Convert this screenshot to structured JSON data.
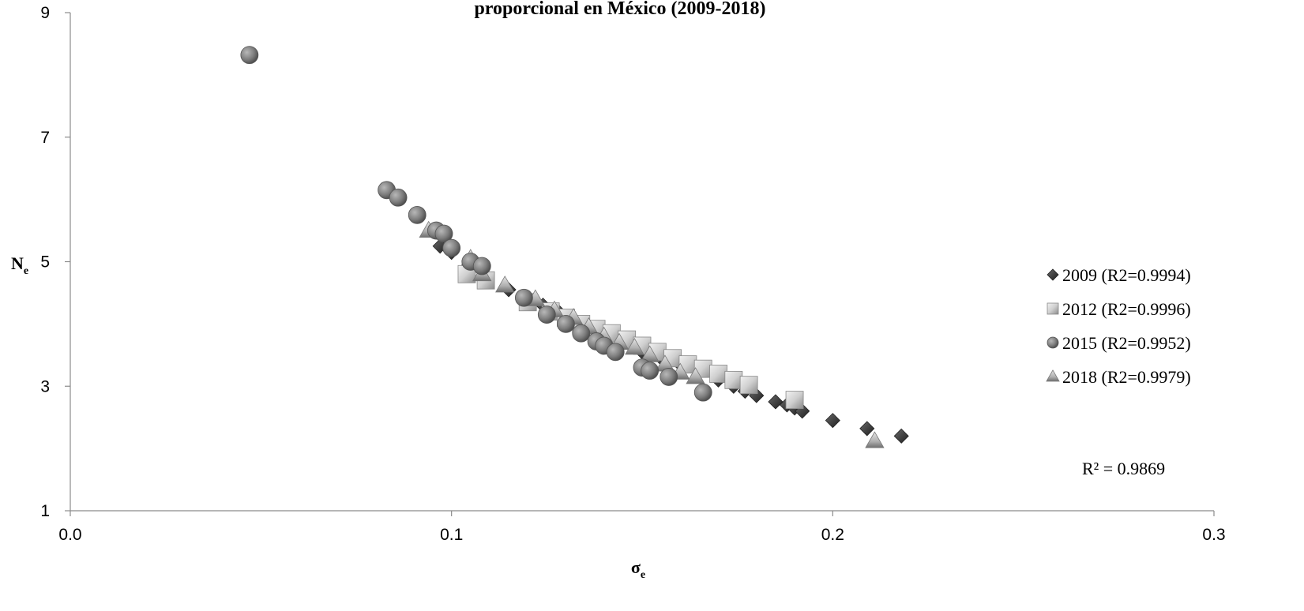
{
  "chart_data": {
    "type": "scatter",
    "title": "proporcional en México (2009-2018)",
    "xlabel": "σ",
    "xlabel_sub": "e",
    "ylabel": "N",
    "ylabel_sub": "e",
    "xlim": [
      0.0,
      0.3
    ],
    "ylim": [
      1,
      9
    ],
    "x_ticks": [
      0.0,
      0.1,
      0.2,
      0.3
    ],
    "x_tick_labels": [
      "0.0",
      "0.1",
      "0.2",
      "0.3"
    ],
    "y_ticks": [
      1,
      3,
      5,
      7,
      9
    ],
    "y_tick_labels": [
      "1",
      "3",
      "5",
      "7",
      "9"
    ],
    "grid": false,
    "legend_position": "right",
    "annotation": "R² = 0.9869",
    "series": [
      {
        "name": "2009 (R2=0.9994)",
        "marker": "diamond",
        "color": "#3a3a3a",
        "points": [
          [
            0.097,
            5.25
          ],
          [
            0.1,
            5.15
          ],
          [
            0.105,
            4.95
          ],
          [
            0.115,
            4.55
          ],
          [
            0.12,
            4.4
          ],
          [
            0.124,
            4.3
          ],
          [
            0.128,
            4.2
          ],
          [
            0.132,
            4.05
          ],
          [
            0.136,
            3.95
          ],
          [
            0.14,
            3.85
          ],
          [
            0.145,
            3.7
          ],
          [
            0.15,
            3.55
          ],
          [
            0.155,
            3.45
          ],
          [
            0.16,
            3.35
          ],
          [
            0.165,
            3.25
          ],
          [
            0.17,
            3.1
          ],
          [
            0.174,
            3.0
          ],
          [
            0.177,
            2.92
          ],
          [
            0.18,
            2.85
          ],
          [
            0.185,
            2.75
          ],
          [
            0.188,
            2.7
          ],
          [
            0.19,
            2.65
          ],
          [
            0.192,
            2.6
          ],
          [
            0.2,
            2.45
          ],
          [
            0.209,
            2.32
          ],
          [
            0.218,
            2.2
          ]
        ]
      },
      {
        "name": "2012 (R2=0.9996)",
        "marker": "square",
        "color": "#cfcfcf",
        "points": [
          [
            0.104,
            4.8
          ],
          [
            0.109,
            4.7
          ],
          [
            0.12,
            4.35
          ],
          [
            0.126,
            4.2
          ],
          [
            0.13,
            4.1
          ],
          [
            0.134,
            4.0
          ],
          [
            0.138,
            3.92
          ],
          [
            0.142,
            3.85
          ],
          [
            0.146,
            3.75
          ],
          [
            0.15,
            3.65
          ],
          [
            0.154,
            3.55
          ],
          [
            0.158,
            3.45
          ],
          [
            0.162,
            3.35
          ],
          [
            0.166,
            3.28
          ],
          [
            0.17,
            3.2
          ],
          [
            0.174,
            3.1
          ],
          [
            0.178,
            3.02
          ],
          [
            0.19,
            2.78
          ]
        ]
      },
      {
        "name": "2015 (R2=0.9952)",
        "marker": "circle",
        "color": "#7a7a7a",
        "points": [
          [
            0.047,
            8.32
          ],
          [
            0.083,
            6.15
          ],
          [
            0.086,
            6.03
          ],
          [
            0.091,
            5.75
          ],
          [
            0.096,
            5.5
          ],
          [
            0.098,
            5.45
          ],
          [
            0.1,
            5.22
          ],
          [
            0.105,
            5.0
          ],
          [
            0.108,
            4.93
          ],
          [
            0.119,
            4.42
          ],
          [
            0.125,
            4.15
          ],
          [
            0.13,
            4.0
          ],
          [
            0.134,
            3.85
          ],
          [
            0.138,
            3.72
          ],
          [
            0.14,
            3.65
          ],
          [
            0.143,
            3.55
          ],
          [
            0.15,
            3.3
          ],
          [
            0.152,
            3.25
          ],
          [
            0.157,
            3.15
          ],
          [
            0.166,
            2.9
          ]
        ]
      },
      {
        "name": "2018 (R2=0.9979)",
        "marker": "triangle",
        "color": "#b5b5b5",
        "points": [
          [
            0.094,
            5.5
          ],
          [
            0.105,
            5.05
          ],
          [
            0.108,
            4.8
          ],
          [
            0.114,
            4.62
          ],
          [
            0.122,
            4.4
          ],
          [
            0.127,
            4.22
          ],
          [
            0.132,
            4.1
          ],
          [
            0.136,
            3.95
          ],
          [
            0.14,
            3.8
          ],
          [
            0.144,
            3.7
          ],
          [
            0.148,
            3.62
          ],
          [
            0.152,
            3.5
          ],
          [
            0.156,
            3.35
          ],
          [
            0.16,
            3.22
          ],
          [
            0.164,
            3.15
          ],
          [
            0.211,
            2.12
          ]
        ]
      }
    ]
  }
}
